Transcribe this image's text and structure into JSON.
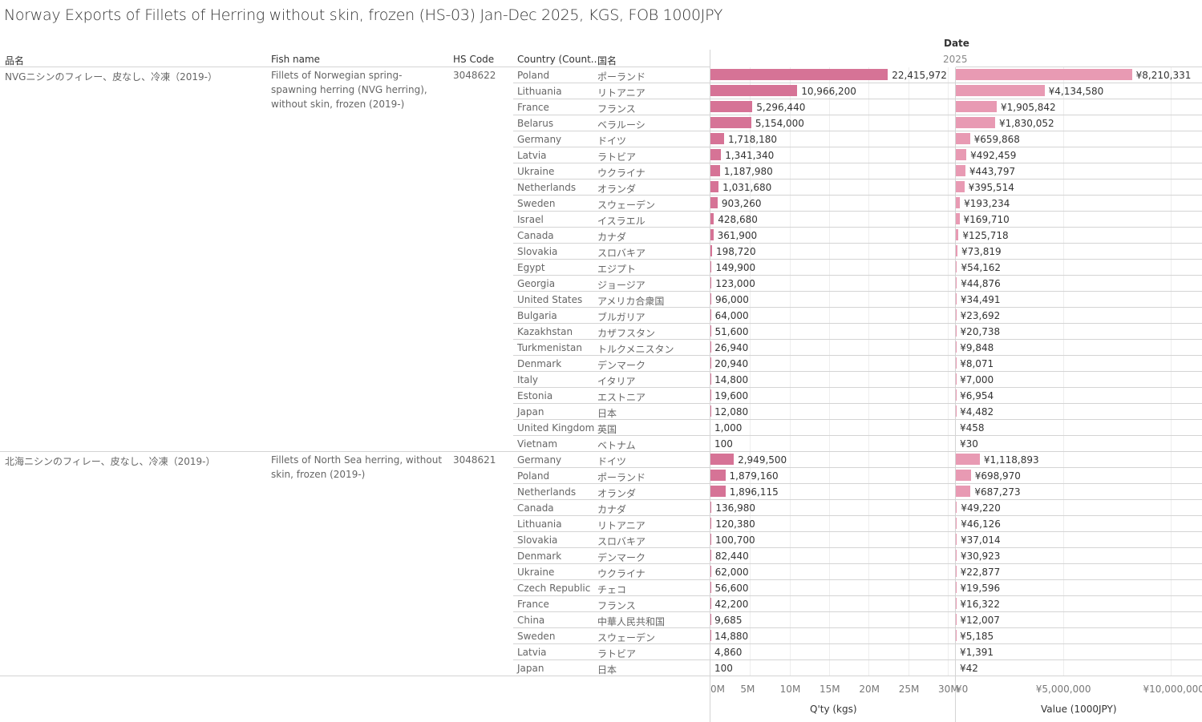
{
  "title": "Norway Exports of Fillets of Herring without skin, frozen (HS-03) Jan-Dec 2025, KGS, FOB 1000JPY",
  "headers": {
    "jp_name": "品名",
    "fish_name": "Fish name",
    "hs_code": "HS Code",
    "country": "Country (Count..",
    "country_jp": "国名",
    "date": "Date",
    "year": "2025"
  },
  "colors": {
    "qty": "#d67396",
    "value": "#e89ab3"
  },
  "chart_data": {
    "type": "bar",
    "x_axes": [
      {
        "label": "Q'ty (kgs)",
        "range": [
          0,
          30400000
        ],
        "ticks": [
          "0M",
          "5M",
          "10M",
          "15M",
          "20M",
          "25M",
          "30M"
        ],
        "tick_values": [
          0,
          5000000,
          10000000,
          15000000,
          20000000,
          25000000,
          30000000
        ]
      },
      {
        "label": "Value (1000JPY)",
        "range": [
          0,
          11400000
        ],
        "ticks": [
          "¥0",
          "¥5,000,000",
          "¥10,000,000"
        ],
        "tick_values": [
          0,
          5000000,
          10000000
        ]
      }
    ],
    "groups": [
      {
        "jp_name": "NVGニシンのフィレー、皮なし、冷凍（2019-）",
        "fish_name": "Fillets of Norwegian spring-spawning herring (NVG herring), without skin, frozen (2019-)",
        "hs_code": "3048622",
        "rows": [
          [
            "Poland",
            "ポーランド",
            22415972,
            "22,415,972",
            8210331,
            "¥8,210,331"
          ],
          [
            "Lithuania",
            "リトアニア",
            10966200,
            "10,966,200",
            4134580,
            "¥4,134,580"
          ],
          [
            "France",
            "フランス",
            5296440,
            "5,296,440",
            1905842,
            "¥1,905,842"
          ],
          [
            "Belarus",
            "ベラルーシ",
            5154000,
            "5,154,000",
            1830052,
            "¥1,830,052"
          ],
          [
            "Germany",
            "ドイツ",
            1718180,
            "1,718,180",
            659868,
            "¥659,868"
          ],
          [
            "Latvia",
            "ラトビア",
            1341340,
            "1,341,340",
            492459,
            "¥492,459"
          ],
          [
            "Ukraine",
            "ウクライナ",
            1187980,
            "1,187,980",
            443797,
            "¥443,797"
          ],
          [
            "Netherlands",
            "オランダ",
            1031680,
            "1,031,680",
            395514,
            "¥395,514"
          ],
          [
            "Sweden",
            "スウェーデン",
            903260,
            "903,260",
            193234,
            "¥193,234"
          ],
          [
            "Israel",
            "イスラエル",
            428680,
            "428,680",
            169710,
            "¥169,710"
          ],
          [
            "Canada",
            "カナダ",
            361900,
            "361,900",
            125718,
            "¥125,718"
          ],
          [
            "Slovakia",
            "スロバキア",
            198720,
            "198,720",
            73819,
            "¥73,819"
          ],
          [
            "Egypt",
            "エジプト",
            149900,
            "149,900",
            54162,
            "¥54,162"
          ],
          [
            "Georgia",
            "ジョージア",
            123000,
            "123,000",
            44876,
            "¥44,876"
          ],
          [
            "United States",
            "アメリカ合衆国",
            96000,
            "96,000",
            34491,
            "¥34,491"
          ],
          [
            "Bulgaria",
            "ブルガリア",
            64000,
            "64,000",
            23692,
            "¥23,692"
          ],
          [
            "Kazakhstan",
            "カザフスタン",
            51600,
            "51,600",
            20738,
            "¥20,738"
          ],
          [
            "Turkmenistan",
            "トルクメニスタン",
            26940,
            "26,940",
            9848,
            "¥9,848"
          ],
          [
            "Denmark",
            "デンマーク",
            20940,
            "20,940",
            8071,
            "¥8,071"
          ],
          [
            "Italy",
            "イタリア",
            14800,
            "14,800",
            7000,
            "¥7,000"
          ],
          [
            "Estonia",
            "エストニア",
            19600,
            "19,600",
            6954,
            "¥6,954"
          ],
          [
            "Japan",
            "日本",
            12080,
            "12,080",
            4482,
            "¥4,482"
          ],
          [
            "United Kingdom",
            "英国",
            1000,
            "1,000",
            458,
            "¥458"
          ],
          [
            "Vietnam",
            "ベトナム",
            100,
            "100",
            30,
            "¥30"
          ]
        ]
      },
      {
        "jp_name": "北海ニシンのフィレー、皮なし、冷凍（2019-）",
        "fish_name": "Fillets of North Sea herring, without skin, frozen (2019-)",
        "hs_code": "3048621",
        "rows": [
          [
            "Germany",
            "ドイツ",
            2949500,
            "2,949,500",
            1118893,
            "¥1,118,893"
          ],
          [
            "Poland",
            "ポーランド",
            1879160,
            "1,879,160",
            698970,
            "¥698,970"
          ],
          [
            "Netherlands",
            "オランダ",
            1896115,
            "1,896,115",
            687273,
            "¥687,273"
          ],
          [
            "Canada",
            "カナダ",
            136980,
            "136,980",
            49220,
            "¥49,220"
          ],
          [
            "Lithuania",
            "リトアニア",
            120380,
            "120,380",
            46126,
            "¥46,126"
          ],
          [
            "Slovakia",
            "スロバキア",
            100700,
            "100,700",
            37014,
            "¥37,014"
          ],
          [
            "Denmark",
            "デンマーク",
            82440,
            "82,440",
            30923,
            "¥30,923"
          ],
          [
            "Ukraine",
            "ウクライナ",
            62000,
            "62,000",
            22877,
            "¥22,877"
          ],
          [
            "Czech Republic",
            "チェコ",
            56600,
            "56,600",
            19596,
            "¥19,596"
          ],
          [
            "France",
            "フランス",
            42200,
            "42,200",
            16322,
            "¥16,322"
          ],
          [
            "China",
            "中華人民共和国",
            9685,
            "9,685",
            12007,
            "¥12,007"
          ],
          [
            "Sweden",
            "スウェーデン",
            14880,
            "14,880",
            5185,
            "¥5,185"
          ],
          [
            "Latvia",
            "ラトビア",
            4860,
            "4,860",
            1391,
            "¥1,391"
          ],
          [
            "Japan",
            "日本",
            100,
            "100",
            42,
            "¥42"
          ]
        ]
      }
    ]
  }
}
